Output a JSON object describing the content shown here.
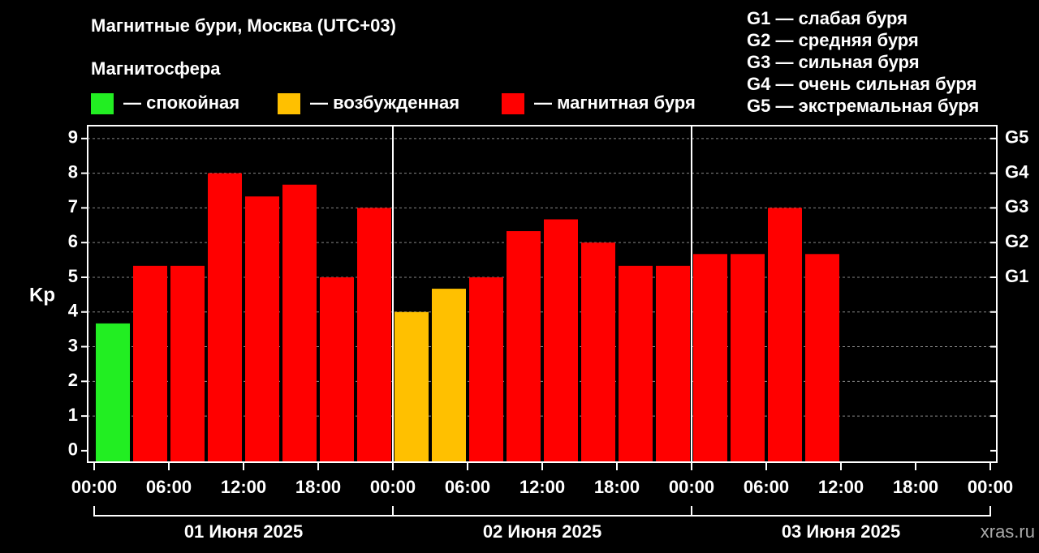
{
  "chart_data": {
    "type": "bar",
    "title": "Магнитные бури, Москва (UTC+03)",
    "legend_title": "Магнитосфера",
    "legend": [
      {
        "name": "— спокойная",
        "color": "#22ee22"
      },
      {
        "name": "— возбужденная",
        "color": "#ffc000"
      },
      {
        "name": "— магнитная буря",
        "color": "#ff0000"
      }
    ],
    "scale_notes": [
      "G1 — слабая буря",
      "G2 — средняя буря",
      "G3 — сильная буря",
      "G4 — очень сильная буря",
      "G5 — экстремальная буря"
    ],
    "y_label": "Kp",
    "x": [
      0,
      3,
      6,
      9,
      12,
      15,
      18,
      21,
      24,
      27,
      30,
      33,
      36,
      39,
      42,
      45,
      48,
      51,
      54,
      57
    ],
    "bar_width": 3,
    "values": [
      3.67,
      5.33,
      5.33,
      8,
      7.33,
      7.67,
      5,
      7,
      4,
      4.67,
      5,
      6.33,
      6.67,
      6,
      5.33,
      5.33,
      5.67,
      5.67,
      7,
      5.67
    ],
    "colors": [
      "#22ee22",
      "#ff0000",
      "#ff0000",
      "#ff0000",
      "#ff0000",
      "#ff0000",
      "#ff0000",
      "#ff0000",
      "#ffc000",
      "#ffc000",
      "#ff0000",
      "#ff0000",
      "#ff0000",
      "#ff0000",
      "#ff0000",
      "#ff0000",
      "#ff0000",
      "#ff0000",
      "#ff0000",
      "#ff0000"
    ],
    "xlim": [
      0,
      72
    ],
    "xticks": [
      {
        "value": 0,
        "label": "00:00"
      },
      {
        "value": 6,
        "label": "06:00"
      },
      {
        "value": 12,
        "label": "12:00"
      },
      {
        "value": 18,
        "label": "18:00"
      },
      {
        "value": 24,
        "label": "00:00"
      },
      {
        "value": 30,
        "label": "06:00"
      },
      {
        "value": 36,
        "label": "12:00"
      },
      {
        "value": 42,
        "label": "18:00"
      },
      {
        "value": 48,
        "label": "00:00"
      },
      {
        "value": 54,
        "label": "06:00"
      },
      {
        "value": 60,
        "label": "12:00"
      },
      {
        "value": 66,
        "label": "18:00"
      },
      {
        "value": 72,
        "label": "00:00"
      }
    ],
    "ylim": [
      -0.33,
      9.37
    ],
    "yticks": [
      0,
      1,
      2,
      3,
      4,
      5,
      6,
      7,
      8,
      9
    ],
    "y2lim": [
      -0.33,
      9.37
    ],
    "y2ticks": [
      {
        "value": 5,
        "label": "G1"
      },
      {
        "value": 6,
        "label": "G2"
      },
      {
        "value": 7,
        "label": "G3"
      },
      {
        "value": 8,
        "label": "G4"
      },
      {
        "value": 9,
        "label": "G5"
      }
    ],
    "day_labels": [
      "01 Июня 2025",
      "02 Июня 2025",
      "03 Июня 2025"
    ],
    "grid": true,
    "watermark": "xras.ru"
  }
}
